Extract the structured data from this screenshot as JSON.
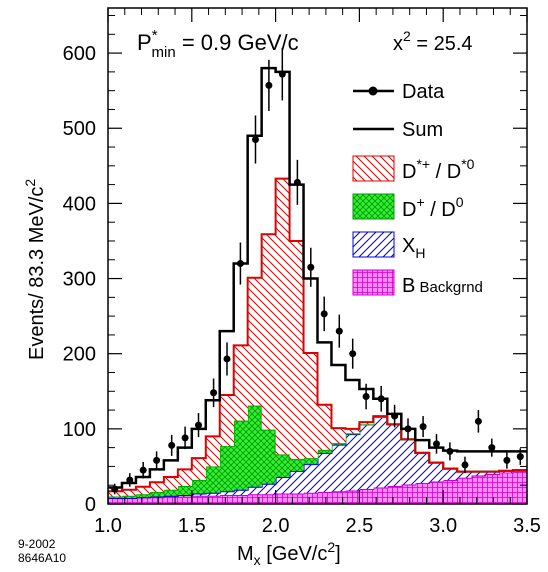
{
  "chart_data": {
    "type": "bar",
    "style": "stacked-histogram-with-data-points",
    "xlabel_main": "M",
    "xlabel_sub": "x",
    "xlabel_unit": " [GeV/c",
    "xlabel_unit_sup": "2",
    "xlabel_unit_close": "]",
    "ylabel_main": "Events/ 83.3 MeV/c",
    "ylabel_sup": "2",
    "annotation_p_main": "P",
    "annotation_p_sup": "*",
    "annotation_p_sub": "min",
    "annotation_p_value": " = 0.9 GeV/c",
    "annotation_chi_main": "x",
    "annotation_chi_sup": "2",
    "annotation_chi_value": " = 25.4",
    "xlim": [
      1.0,
      3.5
    ],
    "ylim": [
      0,
      660
    ],
    "x_ticks": [
      "1.0",
      "1.5",
      "2.0",
      "2.5",
      "3.0",
      "3.5"
    ],
    "x_tick_values": [
      1.0,
      1.5,
      2.0,
      2.5,
      3.0,
      3.5
    ],
    "y_ticks": [
      "0",
      "100",
      "200",
      "300",
      "400",
      "500",
      "600"
    ],
    "y_tick_values": [
      0,
      100,
      200,
      300,
      400,
      500,
      600
    ],
    "bin_edges": [
      1.0,
      1.0833,
      1.1667,
      1.25,
      1.3333,
      1.4167,
      1.5,
      1.5833,
      1.6667,
      1.75,
      1.8333,
      1.9167,
      2.0,
      2.0833,
      2.1667,
      2.25,
      2.3333,
      2.4167,
      2.5,
      2.5833,
      2.6667,
      2.75,
      2.8333,
      2.9167,
      3.0,
      3.0833,
      3.1667,
      3.25,
      3.3333,
      3.4167,
      3.5
    ],
    "series": [
      {
        "name_main": "B",
        "name_small": " Backgrnd",
        "role": "b-background",
        "color": "#ff00ff",
        "fill": "crosshatch",
        "values": [
          8,
          8,
          9,
          9,
          10,
          10,
          11,
          11,
          12,
          12,
          13,
          13,
          14,
          14,
          15,
          16,
          17,
          18,
          20,
          22,
          24,
          26,
          28,
          30,
          32,
          35,
          38,
          40,
          42,
          44
        ]
      },
      {
        "name_main": "X",
        "name_sub": "H",
        "role": "xh",
        "color": "#0000dd",
        "fill": "diagonal-up",
        "values": [
          0,
          0,
          0,
          1,
          1,
          2,
          3,
          4,
          5,
          7,
          10,
          14,
          22,
          30,
          38,
          52,
          62,
          75,
          86,
          94,
          82,
          60,
          40,
          25,
          15,
          8,
          5,
          3,
          2,
          1
        ]
      },
      {
        "name_main": "D",
        "name_sup": "+",
        "name_mid": " / D",
        "name_sup2": "0",
        "role": "d-charged-neutral",
        "color": "#00cc00",
        "fill": "crosshatch",
        "values": [
          2,
          3,
          4,
          6,
          8,
          12,
          18,
          35,
          60,
          92,
          108,
          72,
          30,
          16,
          8,
          4,
          2,
          1,
          0,
          0,
          0,
          0,
          0,
          0,
          0,
          0,
          0,
          0,
          0,
          0
        ]
      },
      {
        "name_main": "D",
        "name_sup": "*+",
        "name_mid": " / D",
        "name_sup2": "*0",
        "role": "d-star",
        "color": "#dd0000",
        "fill": "diagonal-down",
        "values": [
          7,
          8,
          10,
          13,
          17,
          22,
          29,
          40,
          68,
          100,
          170,
          260,
          367,
          290,
          140,
          60,
          20,
          6,
          3,
          1,
          0,
          0,
          0,
          0,
          0,
          0,
          0,
          0,
          0,
          0
        ]
      }
    ],
    "sum": {
      "name": "Sum",
      "values": [
        22,
        28,
        36,
        46,
        58,
        75,
        100,
        138,
        230,
        320,
        490,
        580,
        575,
        425,
        300,
        215,
        185,
        165,
        153,
        140,
        120,
        100,
        85,
        75,
        71,
        70,
        70,
        70,
        70,
        70
      ]
    },
    "data": {
      "name": "Data",
      "x": [
        1.04,
        1.13,
        1.21,
        1.29,
        1.38,
        1.46,
        1.54,
        1.63,
        1.71,
        1.79,
        1.88,
        1.96,
        2.04,
        2.13,
        2.21,
        2.29,
        2.38,
        2.46,
        2.54,
        2.63,
        2.71,
        2.79,
        2.88,
        2.96,
        3.04,
        3.13,
        3.21,
        3.29,
        3.38,
        3.46
      ],
      "y": [
        20,
        32,
        45,
        58,
        78,
        88,
        105,
        148,
        193,
        320,
        485,
        557,
        572,
        428,
        315,
        253,
        230,
        200,
        143,
        140,
        117,
        100,
        103,
        80,
        70,
        52,
        110,
        75,
        58,
        63
      ],
      "err": [
        7,
        9,
        11,
        12,
        14,
        15,
        16,
        19,
        22,
        28,
        32,
        34,
        35,
        30,
        26,
        23,
        22,
        20,
        17,
        17,
        15,
        14,
        14,
        13,
        12,
        11,
        15,
        12,
        11,
        11
      ]
    },
    "legend_order": [
      "data",
      "sum",
      "d-star",
      "d-charged-neutral",
      "xh",
      "b-background"
    ],
    "legend_placement": "top-right",
    "grid": false,
    "footnote_line1": "9-2002",
    "footnote_line2": "8646A10"
  }
}
